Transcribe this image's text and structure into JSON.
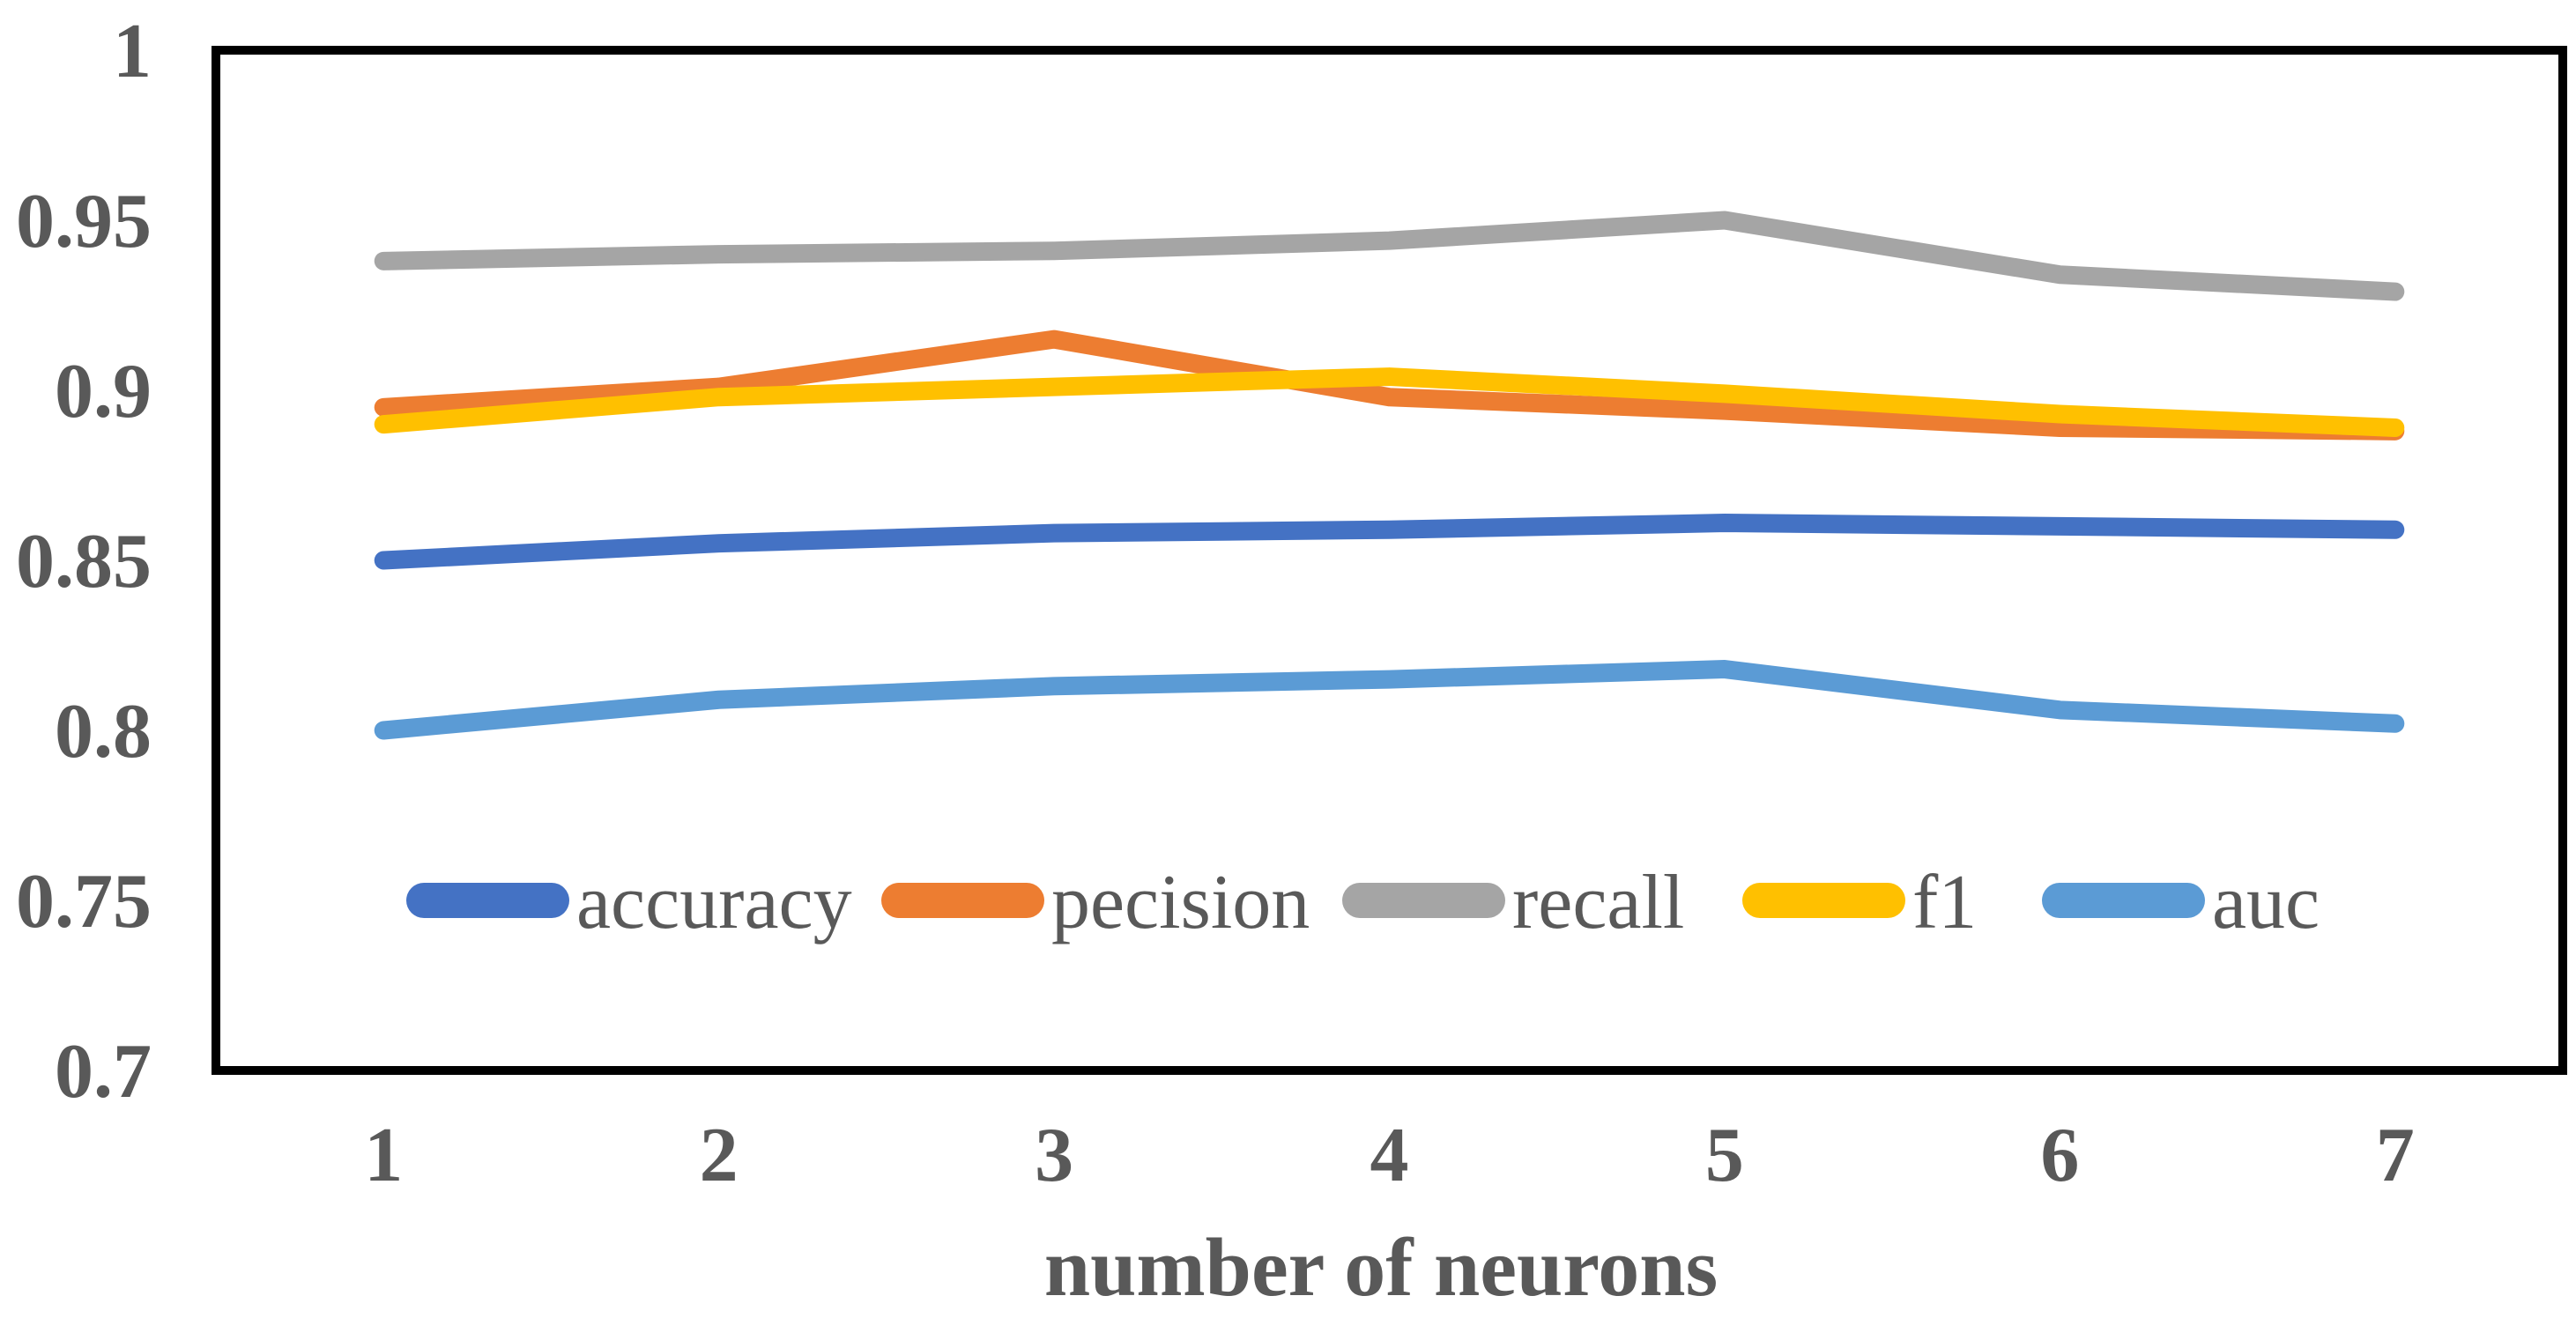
{
  "chart_data": {
    "type": "line",
    "title": "",
    "xlabel": "number of neurons",
    "ylabel": "",
    "x": [
      1,
      2,
      3,
      4,
      5,
      6,
      7
    ],
    "xtick_labels": [
      "1",
      "2",
      "3",
      "4",
      "5",
      "6",
      "7"
    ],
    "ylim": [
      0.7,
      1.0
    ],
    "ytick_values": [
      1.0,
      0.95,
      0.9,
      0.85,
      0.8,
      0.75,
      0.7
    ],
    "ytick_labels": [
      "1",
      "0.95",
      "0.9",
      "0.85",
      "0.8",
      "0.75",
      "0.7"
    ],
    "grid": false,
    "legend_position": "inside-bottom",
    "series": [
      {
        "name": "accuracy",
        "color": "#4472C4",
        "values": [
          0.85,
          0.855,
          0.858,
          0.859,
          0.861,
          0.86,
          0.859
        ]
      },
      {
        "name": "pecision",
        "color": "#ED7D31",
        "values": [
          0.895,
          0.901,
          0.915,
          0.898,
          0.894,
          0.889,
          0.888
        ]
      },
      {
        "name": "recall",
        "color": "#A5A5A5",
        "values": [
          0.938,
          0.94,
          0.941,
          0.944,
          0.95,
          0.934,
          0.929
        ]
      },
      {
        "name": "f1",
        "color": "#FFC000",
        "values": [
          0.89,
          0.898,
          0.901,
          0.904,
          0.899,
          0.893,
          0.889
        ]
      },
      {
        "name": "auc",
        "color": "#5B9BD5",
        "values": [
          0.8,
          0.809,
          0.813,
          0.815,
          0.818,
          0.806,
          0.802
        ]
      }
    ],
    "plot_border_color": "#000000",
    "text_color": "#595959"
  }
}
